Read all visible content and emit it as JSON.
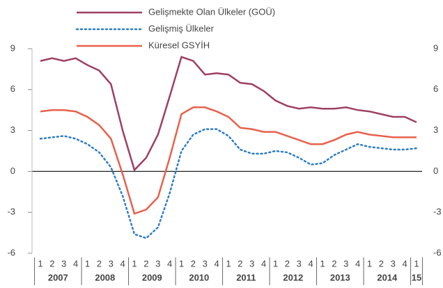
{
  "chart_data": {
    "type": "line",
    "categories": [
      "1",
      "2",
      "3",
      "4",
      "1",
      "2",
      "3",
      "4",
      "1",
      "2",
      "3",
      "4",
      "1",
      "2",
      "3",
      "4",
      "1",
      "2",
      "3",
      "4",
      "1",
      "2",
      "3",
      "4",
      "1",
      "2",
      "3",
      "4",
      "1",
      "2",
      "3",
      "4",
      "1"
    ],
    "year_groups": [
      "2007",
      "2008",
      "2009",
      "2010",
      "2011",
      "2012",
      "2013",
      "2014",
      "15"
    ],
    "series": [
      {
        "name": "Gelişmekte Olan Ülkeler (GOÜ)",
        "color": "#9e3f64",
        "style": "solid",
        "values": [
          8.1,
          8.3,
          8.1,
          8.3,
          7.8,
          7.4,
          6.4,
          3.0,
          0.1,
          1.0,
          2.7,
          5.5,
          8.4,
          8.1,
          7.1,
          7.2,
          7.1,
          6.5,
          6.4,
          5.9,
          5.2,
          4.8,
          4.6,
          4.7,
          4.6,
          4.6,
          4.7,
          4.5,
          4.4,
          4.2,
          4.0,
          4.0,
          3.6
        ]
      },
      {
        "name": "Gelişmiş Ülkeler",
        "color": "#2b7cc4",
        "style": "dotted",
        "values": [
          2.4,
          2.5,
          2.6,
          2.4,
          2.0,
          1.4,
          0.3,
          -1.8,
          -4.6,
          -4.9,
          -4.1,
          -1.6,
          1.5,
          2.7,
          3.1,
          3.1,
          2.6,
          1.6,
          1.3,
          1.3,
          1.5,
          1.4,
          1.0,
          0.5,
          0.6,
          1.2,
          1.6,
          2.0,
          1.8,
          1.7,
          1.6,
          1.6,
          1.7
        ]
      },
      {
        "name": "Küresel GSYİH",
        "color": "#e8604c",
        "style": "solid",
        "values": [
          4.4,
          4.5,
          4.5,
          4.4,
          4.0,
          3.4,
          2.4,
          -0.2,
          -3.1,
          -2.8,
          -1.9,
          1.0,
          4.2,
          4.7,
          4.7,
          4.4,
          4.0,
          3.2,
          3.1,
          2.9,
          2.9,
          2.6,
          2.3,
          2.0,
          2.0,
          2.3,
          2.7,
          2.9,
          2.7,
          2.6,
          2.5,
          2.5,
          2.5
        ]
      }
    ],
    "ylim": [
      -6,
      9
    ],
    "yticks": [
      -6,
      -3,
      0,
      3,
      6,
      9
    ],
    "legend": "top",
    "grid": false
  }
}
